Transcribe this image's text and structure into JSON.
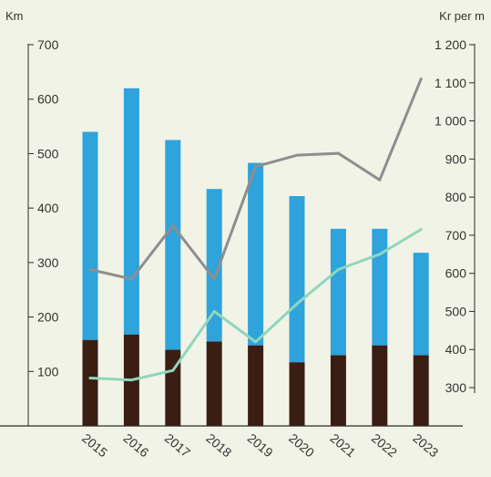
{
  "chart_data": {
    "type": "bar",
    "y_left_label": "Km",
    "y_right_label": "Kr per m",
    "categories": [
      "2015",
      "2016",
      "2017",
      "2018",
      "2019",
      "2020",
      "2021",
      "2022",
      "2023"
    ],
    "bars": {
      "stacked": true,
      "series": [
        {
          "values": [
            158,
            168,
            140,
            155,
            148,
            117,
            130,
            148,
            130
          ],
          "color": "#3a1e14"
        },
        {
          "values": [
            382,
            452,
            385,
            280,
            335,
            305,
            232,
            214,
            188
          ],
          "color": "#2ea3dc"
        }
      ]
    },
    "lines": [
      {
        "values": [
          610,
          585,
          725,
          585,
          880,
          910,
          915,
          845,
          1110
        ],
        "color": "#8e8e8e",
        "axis": "right"
      },
      {
        "values": [
          325,
          320,
          345,
          500,
          420,
          520,
          610,
          650,
          715
        ],
        "color": "#8fd6bd",
        "axis": "right"
      }
    ],
    "y_left": {
      "min": 0,
      "max": 700,
      "ticks": [
        100,
        200,
        300,
        400,
        500,
        600,
        700
      ],
      "tick_labels": [
        "100",
        "200",
        "300",
        "400",
        "500",
        "600",
        "700"
      ]
    },
    "y_right": {
      "min": 200,
      "max": 1200,
      "ticks": [
        300,
        400,
        500,
        600,
        700,
        800,
        900,
        1000,
        1100,
        1200
      ],
      "tick_labels": [
        "300",
        "400",
        "500",
        "600",
        "700",
        "800",
        "900",
        "1 000",
        "1 100",
        "1 200"
      ]
    },
    "grid": false,
    "legend": "none"
  }
}
